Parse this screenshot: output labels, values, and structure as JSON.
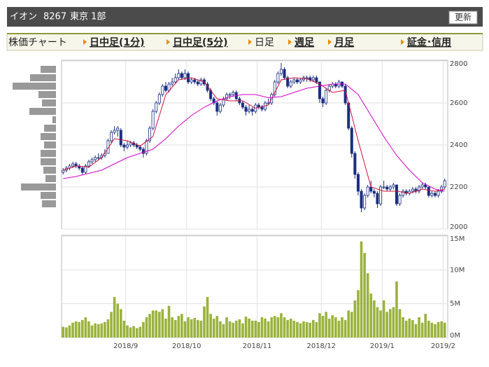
{
  "header": {
    "name": "イオン",
    "code": "8267",
    "market": "東京 1部",
    "button": "更新"
  },
  "nav": {
    "items": [
      "株価チャート",
      "日中足(1分)",
      "日中足(5分)",
      "日足",
      "週足",
      "月足",
      "証金･信用"
    ]
  },
  "chart_data": [
    {
      "type": "candlestick",
      "xlim": [
        -0.5,
        119.5
      ],
      "ylim": [
        2000,
        2800
      ],
      "yticks": [
        2000,
        2200,
        2400,
        2600,
        2800
      ],
      "grid": true,
      "series": [
        {
          "color": "#1a2f80",
          "ohlc": [
            [
              2270,
              2290,
              2260,
              2280
            ],
            [
              2280,
              2300,
              2270,
              2290
            ],
            [
              2290,
              2310,
              2280,
              2300
            ],
            [
              2300,
              2320,
              2290,
              2310
            ],
            [
              2310,
              2320,
              2290,
              2300
            ],
            [
              2300,
              2310,
              2280,
              2290
            ],
            [
              2290,
              2300,
              2260,
              2270
            ],
            [
              2270,
              2310,
              2260,
              2300
            ],
            [
              2300,
              2330,
              2290,
              2320
            ],
            [
              2320,
              2340,
              2310,
              2330
            ],
            [
              2330,
              2350,
              2320,
              2340
            ],
            [
              2340,
              2360,
              2330,
              2340
            ],
            [
              2340,
              2360,
              2330,
              2350
            ],
            [
              2350,
              2380,
              2340,
              2360
            ],
            [
              2360,
              2430,
              2360,
              2420
            ],
            [
              2420,
              2470,
              2410,
              2460
            ],
            [
              2460,
              2490,
              2450,
              2470
            ],
            [
              2470,
              2490,
              2440,
              2480
            ],
            [
              2470,
              2480,
              2390,
              2400
            ],
            [
              2400,
              2410,
              2370,
              2390
            ],
            [
              2390,
              2420,
              2380,
              2400
            ],
            [
              2400,
              2420,
              2390,
              2410
            ],
            [
              2410,
              2420,
              2390,
              2400
            ],
            [
              2400,
              2410,
              2380,
              2390
            ],
            [
              2390,
              2400,
              2370,
              2380
            ],
            [
              2380,
              2390,
              2340,
              2360
            ],
            [
              2360,
              2430,
              2350,
              2420
            ],
            [
              2420,
              2490,
              2410,
              2480
            ],
            [
              2480,
              2570,
              2470,
              2560
            ],
            [
              2560,
              2610,
              2550,
              2600
            ],
            [
              2600,
              2650,
              2590,
              2640
            ],
            [
              2640,
              2690,
              2630,
              2680
            ],
            [
              2680,
              2700,
              2650,
              2660
            ],
            [
              2660,
              2700,
              2650,
              2690
            ],
            [
              2690,
              2720,
              2680,
              2700
            ],
            [
              2700,
              2740,
              2690,
              2720
            ],
            [
              2720,
              2760,
              2710,
              2740
            ],
            [
              2740,
              2750,
              2710,
              2720
            ],
            [
              2720,
              2760,
              2710,
              2740
            ],
            [
              2740,
              2750,
              2690,
              2700
            ],
            [
              2700,
              2720,
              2690,
              2710
            ],
            [
              2710,
              2720,
              2690,
              2700
            ],
            [
              2700,
              2710,
              2680,
              2690
            ],
            [
              2690,
              2720,
              2680,
              2710
            ],
            [
              2710,
              2720,
              2680,
              2690
            ],
            [
              2690,
              2700,
              2650,
              2660
            ],
            [
              2660,
              2670,
              2610,
              2620
            ],
            [
              2620,
              2630,
              2590,
              2600
            ],
            [
              2600,
              2610,
              2540,
              2560
            ],
            [
              2560,
              2600,
              2550,
              2590
            ],
            [
              2590,
              2630,
              2580,
              2620
            ],
            [
              2620,
              2650,
              2610,
              2640
            ],
            [
              2640,
              2650,
              2620,
              2640
            ],
            [
              2640,
              2660,
              2630,
              2650
            ],
            [
              2650,
              2660,
              2610,
              2620
            ],
            [
              2620,
              2630,
              2590,
              2600
            ],
            [
              2600,
              2610,
              2570,
              2580
            ],
            [
              2580,
              2590,
              2540,
              2560
            ],
            [
              2560,
              2590,
              2550,
              2570
            ],
            [
              2570,
              2580,
              2540,
              2560
            ],
            [
              2560,
              2600,
              2550,
              2590
            ],
            [
              2590,
              2600,
              2570,
              2580
            ],
            [
              2580,
              2590,
              2560,
              2570
            ],
            [
              2570,
              2610,
              2560,
              2600
            ],
            [
              2600,
              2620,
              2590,
              2600
            ],
            [
              2600,
              2650,
              2590,
              2640
            ],
            [
              2640,
              2710,
              2630,
              2700
            ],
            [
              2700,
              2750,
              2690,
              2740
            ],
            [
              2740,
              2790,
              2730,
              2760
            ],
            [
              2760,
              2770,
              2710,
              2720
            ],
            [
              2720,
              2730,
              2670,
              2680
            ],
            [
              2680,
              2710,
              2670,
              2700
            ],
            [
              2700,
              2720,
              2690,
              2710
            ],
            [
              2710,
              2720,
              2690,
              2700
            ],
            [
              2700,
              2720,
              2690,
              2710
            ],
            [
              2710,
              2730,
              2700,
              2720
            ],
            [
              2720,
              2730,
              2700,
              2720
            ],
            [
              2720,
              2730,
              2700,
              2710
            ],
            [
              2710,
              2730,
              2700,
              2720
            ],
            [
              2720,
              2730,
              2690,
              2700
            ],
            [
              2700,
              2700,
              2600,
              2620
            ],
            [
              2620,
              2630,
              2580,
              2600
            ],
            [
              2600,
              2670,
              2590,
              2660
            ],
            [
              2660,
              2690,
              2650,
              2680
            ],
            [
              2680,
              2700,
              2670,
              2690
            ],
            [
              2690,
              2700,
              2670,
              2680
            ],
            [
              2680,
              2710,
              2670,
              2700
            ],
            [
              2700,
              2700,
              2670,
              2680
            ],
            [
              2680,
              2690,
              2590,
              2600
            ],
            [
              2600,
              2600,
              2470,
              2480
            ],
            [
              2480,
              2490,
              2340,
              2360
            ],
            [
              2360,
              2370,
              2240,
              2260
            ],
            [
              2260,
              2270,
              2160,
              2180
            ],
            [
              2180,
              2190,
              2080,
              2100
            ],
            [
              2100,
              2170,
              2090,
              2160
            ],
            [
              2160,
              2210,
              2150,
              2200
            ],
            [
              2200,
              2230,
              2170,
              2180
            ],
            [
              2180,
              2190,
              2150,
              2170
            ],
            [
              2170,
              2180,
              2100,
              2120
            ],
            [
              2120,
              2210,
              2110,
              2200
            ],
            [
              2200,
              2230,
              2190,
              2200
            ],
            [
              2200,
              2210,
              2180,
              2190
            ],
            [
              2190,
              2210,
              2180,
              2200
            ],
            [
              2200,
              2220,
              2190,
              2210
            ],
            [
              2210,
              2210,
              2110,
              2120
            ],
            [
              2120,
              2170,
              2110,
              2160
            ],
            [
              2160,
              2190,
              2150,
              2180
            ],
            [
              2180,
              2190,
              2160,
              2170
            ],
            [
              2170,
              2190,
              2160,
              2180
            ],
            [
              2180,
              2200,
              2170,
              2190
            ],
            [
              2190,
              2200,
              2170,
              2180
            ],
            [
              2180,
              2210,
              2170,
              2200
            ],
            [
              2200,
              2220,
              2190,
              2210
            ],
            [
              2210,
              2220,
              2190,
              2200
            ],
            [
              2200,
              2200,
              2150,
              2160
            ],
            [
              2160,
              2180,
              2150,
              2170
            ],
            [
              2170,
              2180,
              2150,
              2160
            ],
            [
              2160,
              2190,
              2150,
              2180
            ],
            [
              2180,
              2210,
              2170,
              2200
            ],
            [
              2200,
              2240,
              2190,
              2230
            ]
          ]
        }
      ],
      "lines": [
        {
          "color": "#d0103a",
          "x": [
            0,
            4,
            8,
            12,
            16,
            20,
            24,
            28,
            32,
            36,
            40,
            44,
            48,
            52,
            56,
            60,
            64,
            68,
            72,
            76,
            80,
            84,
            88,
            92,
            96,
            100,
            104,
            108,
            112,
            116,
            119
          ],
          "values": [
            2280,
            2300,
            2295,
            2340,
            2430,
            2420,
            2395,
            2440,
            2640,
            2710,
            2720,
            2700,
            2620,
            2610,
            2610,
            2575,
            2590,
            2710,
            2720,
            2715,
            2690,
            2650,
            2660,
            2420,
            2200,
            2180,
            2180,
            2170,
            2190,
            2180,
            2190
          ]
        },
        {
          "color": "#d000c8",
          "x": [
            0,
            4,
            8,
            12,
            16,
            20,
            24,
            28,
            32,
            36,
            40,
            44,
            48,
            52,
            56,
            60,
            64,
            68,
            72,
            76,
            80,
            84,
            88,
            92,
            96,
            100,
            104,
            108,
            112,
            116,
            119
          ],
          "values": [
            2240,
            2250,
            2265,
            2280,
            2310,
            2340,
            2360,
            2380,
            2430,
            2490,
            2540,
            2580,
            2610,
            2630,
            2640,
            2640,
            2625,
            2630,
            2650,
            2670,
            2680,
            2690,
            2690,
            2640,
            2540,
            2440,
            2350,
            2280,
            2220,
            2190,
            2180
          ]
        }
      ],
      "volume_profile": {
        "color": "#999999",
        "price_levels": [
          2760,
          2720,
          2680,
          2640,
          2600,
          2560,
          2520,
          2480,
          2440,
          2400,
          2360,
          2320,
          2280,
          2240,
          2200,
          2160,
          2120
        ],
        "values": [
          22,
          37,
          62,
          25,
          20,
          38,
          5,
          17,
          22,
          17,
          22,
          22,
          18,
          15,
          50,
          22,
          20
        ]
      }
    },
    {
      "type": "bar",
      "color": "#9ab33c",
      "xlim": [
        -0.5,
        119.5
      ],
      "ylim": [
        0,
        15
      ],
      "yticks": [
        {
          "value": 0,
          "label": "0M"
        },
        {
          "value": 5,
          "label": "5M"
        },
        {
          "value": 10,
          "label": "10M"
        },
        {
          "value": 15,
          "label": "15M"
        }
      ],
      "xticks": [
        {
          "value": 20,
          "label": "2018/9"
        },
        {
          "value": 39,
          "label": "2018/10"
        },
        {
          "value": 61,
          "label": "2018/11"
        },
        {
          "value": 81,
          "label": "2018/12"
        },
        {
          "value": 100,
          "label": "2019/1"
        },
        {
          "value": 119,
          "label": "2019/2"
        }
      ],
      "grid": true,
      "values": [
        1.6,
        1.5,
        1.8,
        2.2,
        2.4,
        2.3,
        2.6,
        3.0,
        2.4,
        1.8,
        2.1,
        2.0,
        2.1,
        2.3,
        2.7,
        3.8,
        6.0,
        5.0,
        4.2,
        2.5,
        1.8,
        1.5,
        1.7,
        1.4,
        1.6,
        2.3,
        3.0,
        3.5,
        4.0,
        4.0,
        3.8,
        4.2,
        2.8,
        4.7,
        3.0,
        2.6,
        3.2,
        3.5,
        2.4,
        3.0,
        2.7,
        2.9,
        2.6,
        2.5,
        4.6,
        6.0,
        3.5,
        2.8,
        3.2,
        2.4,
        2.0,
        3.0,
        2.4,
        2.2,
        2.5,
        2.7,
        2.1,
        3.1,
        2.8,
        2.5,
        2.5,
        2.3,
        3.0,
        2.8,
        2.4,
        3.0,
        3.2,
        3.0,
        3.6,
        3.0,
        2.6,
        2.8,
        2.5,
        2.3,
        2.1,
        2.4,
        2.3,
        2.2,
        2.6,
        2.3,
        3.6,
        3.2,
        3.8,
        2.8,
        3.3,
        3.0,
        2.5,
        3.0,
        2.6,
        4.0,
        3.8,
        5.5,
        7.0,
        14.2,
        12.5,
        9.5,
        6.5,
        5.5,
        4.5,
        4.0,
        5.5,
        3.8,
        4.2,
        4.5,
        8.3,
        4.2,
        3.0,
        2.5,
        2.8,
        2.6,
        2.0,
        3.0,
        2.2,
        3.5,
        2.5,
        2.2,
        2.0,
        2.3,
        2.4,
        2.2
      ]
    }
  ]
}
